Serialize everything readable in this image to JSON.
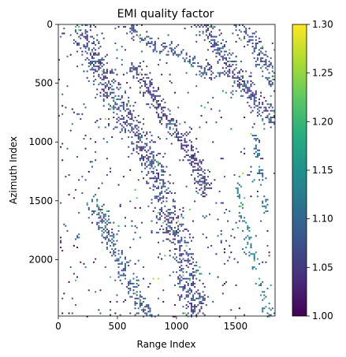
{
  "chart_data": {
    "type": "heatmap",
    "title": "EMI quality factor",
    "xlabel": "Range Index",
    "ylabel": "Azimuth Index",
    "xlim": [
      0,
      1834
    ],
    "ylim": [
      2480,
      0
    ],
    "xticks": [
      0,
      500,
      1000,
      1500
    ],
    "yticks": [
      0,
      500,
      1000,
      1500,
      2000
    ],
    "colorbar": {
      "range": [
        1.0,
        1.3
      ],
      "ticks": [
        "1.00",
        "1.05",
        "1.10",
        "1.15",
        "1.20",
        "1.25",
        "1.30"
      ],
      "colormap": "viridis"
    },
    "background": "#ffffff",
    "nodata": "white (masked pixels)",
    "structures": [
      {
        "points": [
          [
            210,
            0
          ],
          [
            250,
            200
          ],
          [
            420,
            520
          ],
          [
            560,
            760
          ],
          [
            700,
            1020
          ],
          [
            820,
            1280
          ],
          [
            960,
            1700
          ],
          [
            1080,
            2050
          ],
          [
            1160,
            2480
          ]
        ],
        "width": 140,
        "density": 0.45,
        "value": 1.02
      },
      {
        "points": [
          [
            650,
            360
          ],
          [
            760,
            560
          ],
          [
            900,
            780
          ],
          [
            1030,
            950
          ],
          [
            1150,
            1150
          ],
          [
            1230,
            1400
          ]
        ],
        "width": 90,
        "density": 0.55,
        "value": 1.01
      },
      {
        "points": [
          [
            600,
            0
          ],
          [
            720,
            150
          ],
          [
            920,
            200
          ],
          [
            1100,
            300
          ],
          [
            1300,
            420
          ]
        ],
        "width": 80,
        "density": 0.45,
        "value": 1.03
      },
      {
        "points": [
          [
            1230,
            0
          ],
          [
            1380,
            250
          ],
          [
            1560,
            500
          ],
          [
            1700,
            700
          ],
          [
            1834,
            820
          ]
        ],
        "width": 110,
        "density": 0.5,
        "value": 1.02
      },
      {
        "points": [
          [
            1520,
            0
          ],
          [
            1640,
            150
          ],
          [
            1760,
            350
          ],
          [
            1834,
            500
          ]
        ],
        "width": 90,
        "density": 0.45,
        "value": 1.02
      },
      {
        "points": [
          [
            300,
            1500
          ],
          [
            420,
            1750
          ],
          [
            520,
            2000
          ],
          [
            640,
            2250
          ],
          [
            760,
            2480
          ]
        ],
        "width": 90,
        "density": 0.45,
        "value": 1.04
      },
      {
        "points": [
          [
            850,
            1550
          ],
          [
            950,
            1800
          ],
          [
            1070,
            2050
          ],
          [
            1200,
            2350
          ]
        ],
        "width": 80,
        "density": 0.4,
        "value": 1.02
      },
      {
        "points": [
          [
            1500,
            1300
          ],
          [
            1580,
            1700
          ],
          [
            1660,
            2050
          ],
          [
            1780,
            2480
          ]
        ],
        "width": 50,
        "density": 0.3,
        "value": 1.08
      },
      {
        "points": [
          [
            1650,
            900
          ],
          [
            1700,
            1250
          ],
          [
            1760,
            1600
          ]
        ],
        "width": 40,
        "density": 0.3,
        "value": 1.06
      }
    ]
  }
}
